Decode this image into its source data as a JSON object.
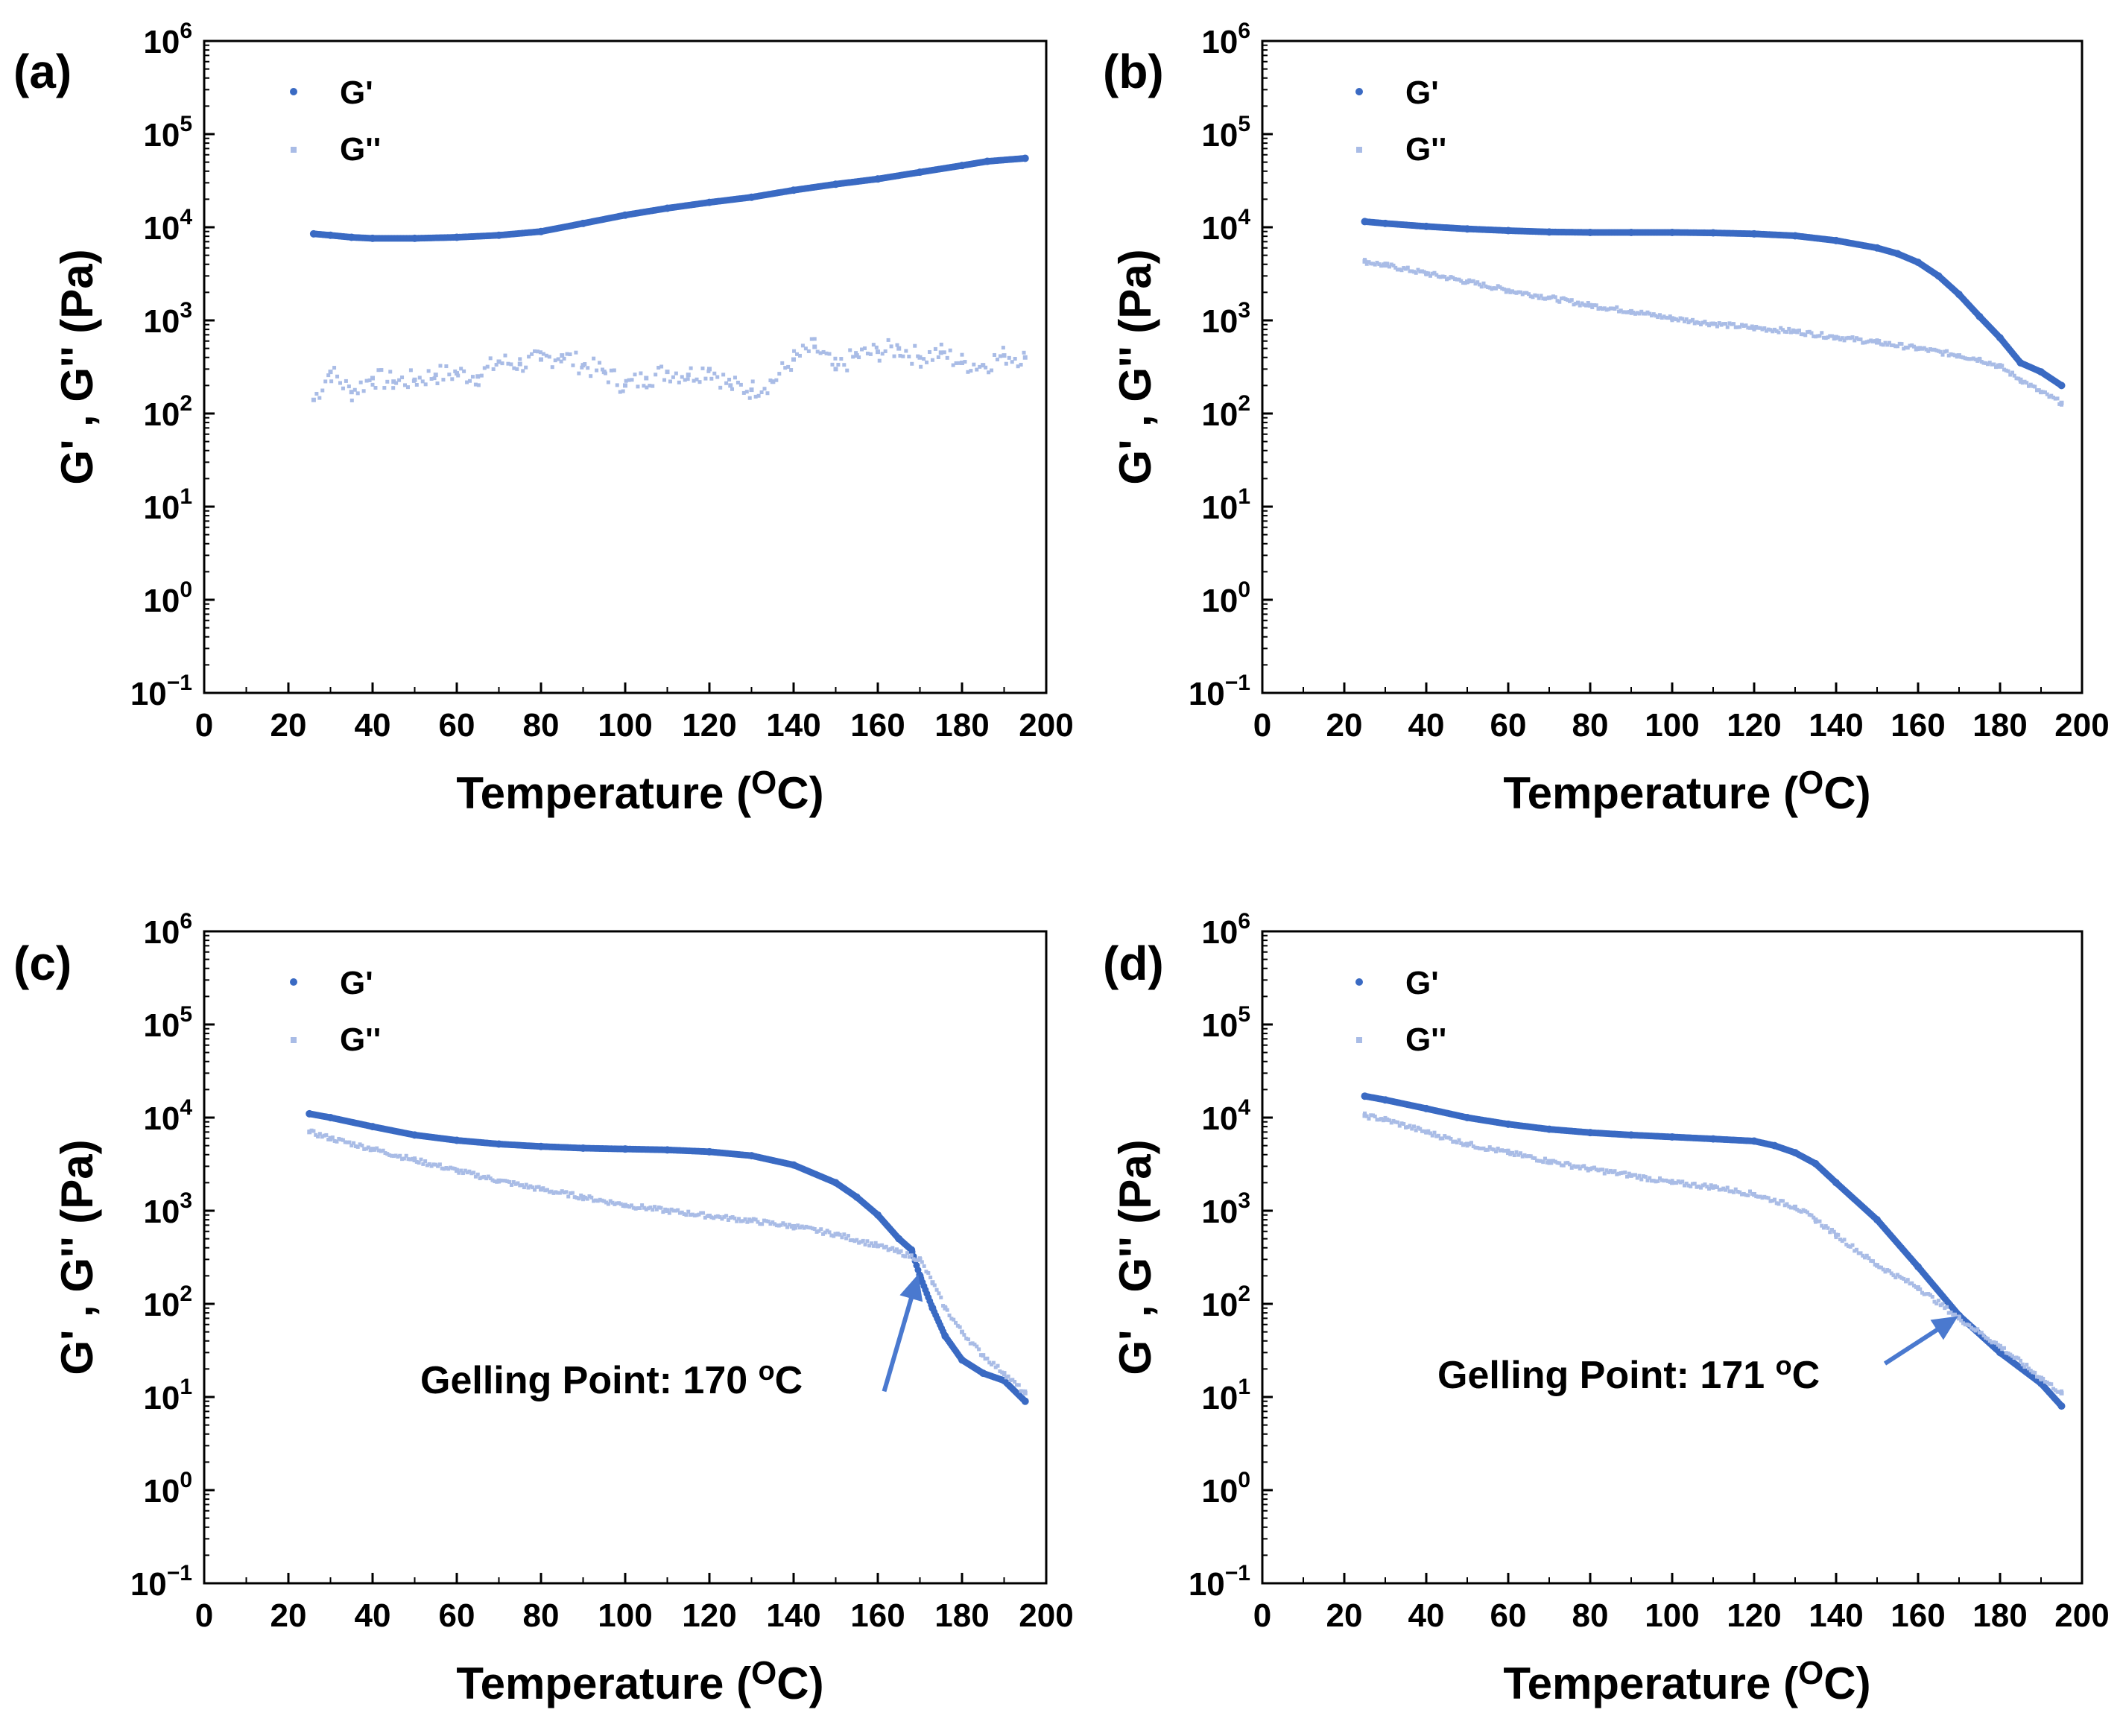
{
  "colors": {
    "g_prime": "#3a6ac3",
    "g_double_prime": "#a9bce6",
    "axis": "#000000",
    "arrow": "#4a79cf"
  },
  "x_tick_labels": [
    "0",
    "20",
    "40",
    "60",
    "80",
    "100",
    "120",
    "140",
    "160",
    "180",
    "200"
  ],
  "chart_data": [
    {
      "panel": "(a)",
      "type": "scatter",
      "xlabel": "Temperature (",
      "xlabel_unit": "O",
      "xlabel_unit_tail": "C)",
      "ylabel": "G' , G'' (Pa)",
      "xlim": [
        0,
        200
      ],
      "ylim_log10": [
        -1,
        6
      ],
      "yscale": "log",
      "legend": [
        "G'",
        "G''"
      ],
      "legend_position": "top-left",
      "series": [
        {
          "name": "G'",
          "x": [
            26,
            30,
            35,
            40,
            50,
            60,
            70,
            80,
            90,
            100,
            110,
            120,
            130,
            140,
            150,
            160,
            170,
            180,
            186,
            195
          ],
          "y": [
            8500,
            8200,
            7800,
            7600,
            7600,
            7800,
            8200,
            9000,
            11000,
            13500,
            16000,
            18500,
            21000,
            25000,
            29000,
            33000,
            39000,
            46000,
            51000,
            55000
          ]
        },
        {
          "name": "G''",
          "x": [
            26,
            30,
            35,
            40,
            45,
            50,
            55,
            60,
            65,
            70,
            75,
            80,
            85,
            90,
            95,
            100,
            105,
            110,
            115,
            120,
            125,
            130,
            135,
            140,
            145,
            150,
            155,
            160,
            165,
            170,
            175,
            180,
            185,
            190,
            195
          ],
          "y": [
            140,
            280,
            170,
            240,
            220,
            230,
            260,
            270,
            250,
            360,
            340,
            380,
            420,
            330,
            280,
            200,
            240,
            280,
            260,
            300,
            200,
            180,
            220,
            380,
            520,
            300,
            420,
            460,
            500,
            400,
            450,
            350,
            330,
            420,
            400
          ]
        }
      ],
      "annotation": null
    },
    {
      "panel": "(b)",
      "type": "scatter",
      "xlabel": "Temperature (",
      "xlabel_unit": "O",
      "xlabel_unit_tail": "C)",
      "ylabel": "G' , G'' (Pa)",
      "xlim": [
        0,
        200
      ],
      "ylim_log10": [
        -1,
        6
      ],
      "yscale": "log",
      "legend": [
        "G'",
        "G''"
      ],
      "legend_position": "top-left",
      "series": [
        {
          "name": "G'",
          "x": [
            25,
            30,
            40,
            50,
            60,
            70,
            80,
            90,
            100,
            110,
            120,
            130,
            140,
            150,
            155,
            160,
            165,
            170,
            175,
            180,
            185,
            190,
            195
          ],
          "y": [
            11500,
            11000,
            10200,
            9600,
            9200,
            8900,
            8800,
            8800,
            8800,
            8700,
            8500,
            8100,
            7200,
            6000,
            5200,
            4200,
            3000,
            1900,
            1100,
            650,
            350,
            280,
            200
          ]
        },
        {
          "name": "G''",
          "x": [
            25,
            30,
            40,
            50,
            60,
            70,
            80,
            90,
            100,
            110,
            120,
            130,
            140,
            150,
            160,
            170,
            175,
            180,
            185,
            190,
            195
          ],
          "y": [
            4300,
            3900,
            3200,
            2600,
            2100,
            1750,
            1450,
            1250,
            1050,
            920,
            830,
            760,
            660,
            580,
            500,
            420,
            380,
            320,
            230,
            170,
            130
          ]
        }
      ],
      "annotation": null
    },
    {
      "panel": "(c)",
      "type": "scatter",
      "xlabel": "Temperature (",
      "xlabel_unit": "O",
      "xlabel_unit_tail": "C)",
      "ylabel": "G' , G'' (Pa)",
      "xlim": [
        0,
        200
      ],
      "ylim_log10": [
        -1,
        6
      ],
      "yscale": "log",
      "legend": [
        "G'",
        "G''"
      ],
      "legend_position": "top-left",
      "series": [
        {
          "name": "G'",
          "x": [
            25,
            30,
            40,
            50,
            60,
            70,
            80,
            90,
            100,
            110,
            120,
            130,
            140,
            150,
            155,
            160,
            165,
            168,
            170,
            173,
            176,
            180,
            185,
            190,
            195
          ],
          "y": [
            11000,
            10000,
            8000,
            6500,
            5700,
            5200,
            4900,
            4700,
            4600,
            4500,
            4300,
            3900,
            3100,
            2000,
            1400,
            900,
            500,
            380,
            200,
            90,
            45,
            25,
            18,
            15,
            9
          ]
        },
        {
          "name": "G''",
          "x": [
            25,
            30,
            40,
            50,
            60,
            70,
            80,
            90,
            100,
            110,
            120,
            130,
            140,
            150,
            160,
            165,
            170,
            173,
            176,
            180,
            185,
            190,
            195
          ],
          "y": [
            7000,
            6000,
            4600,
            3500,
            2700,
            2100,
            1700,
            1400,
            1150,
            1000,
            880,
            780,
            680,
            560,
            420,
            360,
            300,
            170,
            90,
            50,
            28,
            18,
            11
          ]
        }
      ],
      "annotation": {
        "text": "Gelling Point: 170 ",
        "unit": "o",
        "unit_tail": "C",
        "target_x": 170,
        "target_y": 240
      }
    },
    {
      "panel": "(d)",
      "type": "scatter",
      "xlabel": "Temperature (",
      "xlabel_unit": "O",
      "xlabel_unit_tail": "C)",
      "ylabel": "G' , G'' (Pa)",
      "xlim": [
        0,
        200
      ],
      "ylim_log10": [
        -1,
        6
      ],
      "yscale": "log",
      "legend": [
        "G'",
        "G''"
      ],
      "legend_position": "top-left",
      "series": [
        {
          "name": "G'",
          "x": [
            25,
            30,
            40,
            50,
            60,
            70,
            80,
            90,
            100,
            110,
            120,
            125,
            130,
            135,
            140,
            150,
            160,
            170,
            180,
            190,
            195
          ],
          "y": [
            17000,
            15500,
            12500,
            10000,
            8500,
            7500,
            6900,
            6500,
            6200,
            5900,
            5600,
            5000,
            4200,
            3200,
            2000,
            800,
            250,
            75,
            30,
            14,
            8
          ]
        },
        {
          "name": "G''",
          "x": [
            25,
            30,
            40,
            50,
            60,
            70,
            80,
            90,
            100,
            110,
            120,
            130,
            135,
            140,
            150,
            160,
            170,
            180,
            190,
            195
          ],
          "y": [
            10500,
            9500,
            7000,
            5200,
            4200,
            3400,
            2800,
            2400,
            2000,
            1800,
            1500,
            1100,
            800,
            550,
            260,
            150,
            70,
            35,
            16,
            11
          ]
        }
      ],
      "annotation": {
        "text": "Gelling Point: 171 ",
        "unit": "o",
        "unit_tail": "C",
        "target_x": 171,
        "target_y": 80
      }
    }
  ]
}
